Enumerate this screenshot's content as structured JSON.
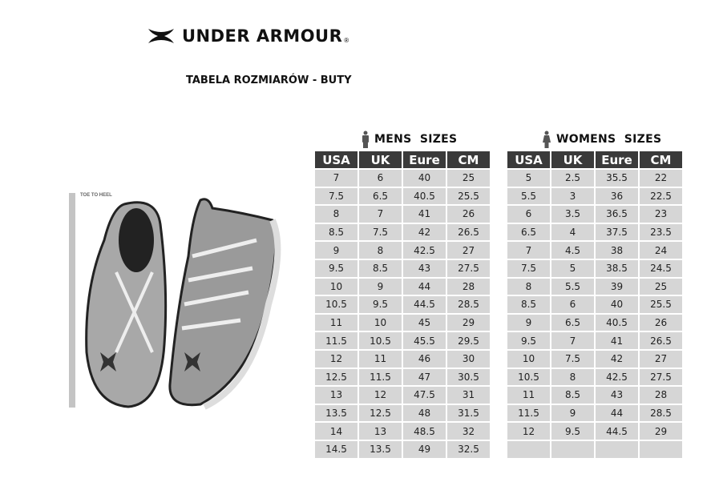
{
  "brand": {
    "name": "UNDER ARMOUR",
    "registered": "®"
  },
  "title": "TABELA ROZMIARÓW - BUTY",
  "illustration": {
    "ruler_label": "TOE TO HEEL"
  },
  "mens": {
    "title": "MENS  SIZES",
    "icon": "man-icon",
    "headers": [
      "USA",
      "UK",
      "Eure",
      "CM"
    ],
    "rows": [
      [
        "7",
        "6",
        "40",
        "25"
      ],
      [
        "7.5",
        "6.5",
        "40.5",
        "25.5"
      ],
      [
        "8",
        "7",
        "41",
        "26"
      ],
      [
        "8.5",
        "7.5",
        "42",
        "26.5"
      ],
      [
        "9",
        "8",
        "42.5",
        "27"
      ],
      [
        "9.5",
        "8.5",
        "43",
        "27.5"
      ],
      [
        "10",
        "9",
        "44",
        "28"
      ],
      [
        "10.5",
        "9.5",
        "44.5",
        "28.5"
      ],
      [
        "11",
        "10",
        "45",
        "29"
      ],
      [
        "11.5",
        "10.5",
        "45.5",
        "29.5"
      ],
      [
        "12",
        "11",
        "46",
        "30"
      ],
      [
        "12.5",
        "11.5",
        "47",
        "30.5"
      ],
      [
        "13",
        "12",
        "47.5",
        "31"
      ],
      [
        "13.5",
        "12.5",
        "48",
        "31.5"
      ],
      [
        "14",
        "13",
        "48.5",
        "32"
      ],
      [
        "14.5",
        "13.5",
        "49",
        "32.5"
      ]
    ]
  },
  "womens": {
    "title": "WOMENS  SIZES",
    "icon": "woman-icon",
    "headers": [
      "USA",
      "UK",
      "Eure",
      "CM"
    ],
    "rows": [
      [
        "5",
        "2.5",
        "35.5",
        "22"
      ],
      [
        "5.5",
        "3",
        "36",
        "22.5"
      ],
      [
        "6",
        "3.5",
        "36.5",
        "23"
      ],
      [
        "6.5",
        "4",
        "37.5",
        "23.5"
      ],
      [
        "7",
        "4.5",
        "38",
        "24"
      ],
      [
        "7.5",
        "5",
        "38.5",
        "24.5"
      ],
      [
        "8",
        "5.5",
        "39",
        "25"
      ],
      [
        "8.5",
        "6",
        "40",
        "25.5"
      ],
      [
        "9",
        "6.5",
        "40.5",
        "26"
      ],
      [
        "9.5",
        "7",
        "41",
        "26.5"
      ],
      [
        "10",
        "7.5",
        "42",
        "27"
      ],
      [
        "10.5",
        "8",
        "42.5",
        "27.5"
      ],
      [
        "11",
        "8.5",
        "43",
        "28"
      ],
      [
        "11.5",
        "9",
        "44",
        "28.5"
      ],
      [
        "12",
        "9.5",
        "44.5",
        "29"
      ],
      [
        "",
        "",
        "",
        ""
      ]
    ]
  },
  "colors": {
    "header_bg": "#3a3a3a",
    "cell_bg": "#d6d6d6"
  }
}
